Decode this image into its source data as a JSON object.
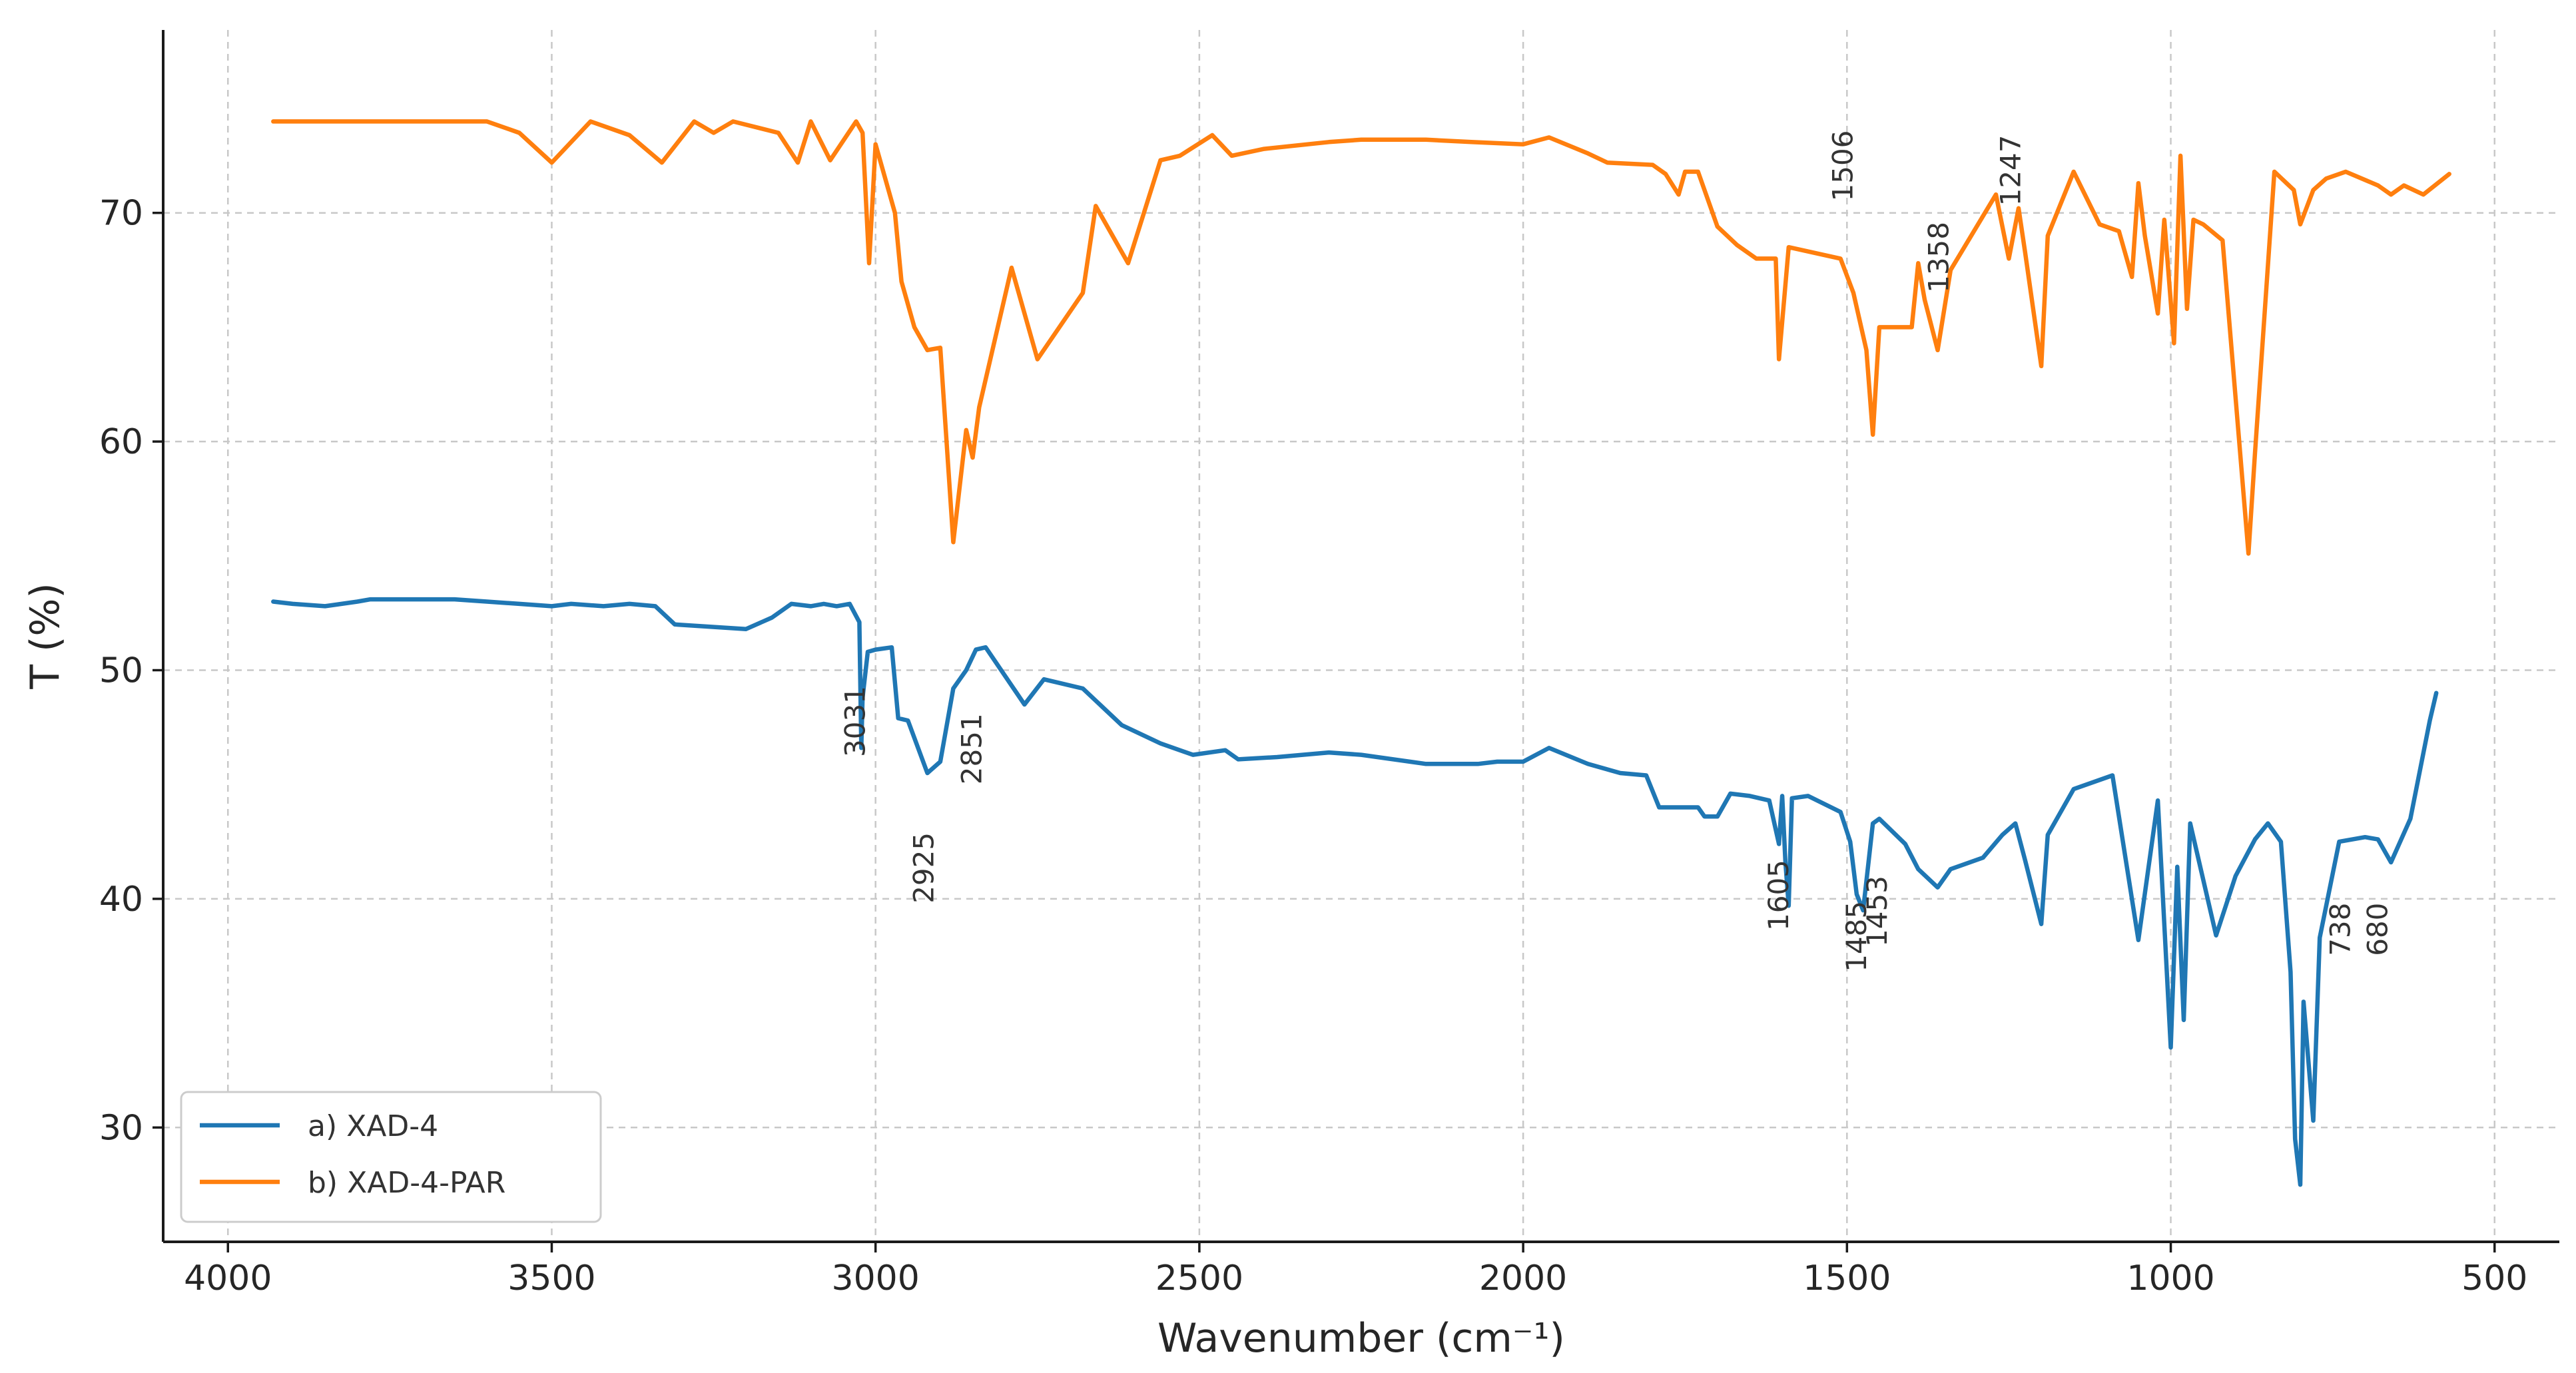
{
  "chart_data": {
    "type": "line",
    "title": "",
    "xlabel": "Wavenumber (cm⁻¹)",
    "ylabel": "T (%)",
    "xlim": [
      4100,
      400
    ],
    "ylim": [
      25,
      78
    ],
    "x_reversed": true,
    "grid": true,
    "legend_position": "bottom-left",
    "xticks": [
      4000,
      3500,
      3000,
      2500,
      2000,
      1500,
      1000,
      500
    ],
    "yticks": [
      30,
      40,
      50,
      60,
      70
    ],
    "series": [
      {
        "name": "a) XAD-4",
        "color": "#1f77b4",
        "points": [
          [
            3930,
            53.0
          ],
          [
            3900,
            52.9
          ],
          [
            3850,
            52.8
          ],
          [
            3800,
            53.0
          ],
          [
            3780,
            53.1
          ],
          [
            3700,
            53.1
          ],
          [
            3650,
            53.1
          ],
          [
            3600,
            53.0
          ],
          [
            3550,
            52.9
          ],
          [
            3500,
            52.8
          ],
          [
            3470,
            52.9
          ],
          [
            3420,
            52.8
          ],
          [
            3380,
            52.9
          ],
          [
            3340,
            52.8
          ],
          [
            3310,
            52.0
          ],
          [
            3200,
            51.8
          ],
          [
            3160,
            52.3
          ],
          [
            3130,
            52.9
          ],
          [
            3100,
            52.8
          ],
          [
            3080,
            52.9
          ],
          [
            3060,
            52.8
          ],
          [
            3040,
            52.9
          ],
          [
            3025,
            52.1
          ],
          [
            3022,
            46.6
          ],
          [
            3020,
            48.8
          ],
          [
            3012,
            50.8
          ],
          [
            3000,
            50.9
          ],
          [
            2975,
            51.0
          ],
          [
            2965,
            47.9
          ],
          [
            2950,
            47.8
          ],
          [
            2920,
            45.5
          ],
          [
            2900,
            46.0
          ],
          [
            2880,
            49.2
          ],
          [
            2860,
            50.0
          ],
          [
            2845,
            50.9
          ],
          [
            2830,
            51.0
          ],
          [
            2770,
            48.5
          ],
          [
            2740,
            49.6
          ],
          [
            2680,
            49.2
          ],
          [
            2620,
            47.6
          ],
          [
            2560,
            46.8
          ],
          [
            2510,
            46.3
          ],
          [
            2460,
            46.5
          ],
          [
            2440,
            46.1
          ],
          [
            2380,
            46.2
          ],
          [
            2300,
            46.4
          ],
          [
            2250,
            46.3
          ],
          [
            2150,
            45.9
          ],
          [
            2070,
            45.9
          ],
          [
            2040,
            46.0
          ],
          [
            2000,
            46.0
          ],
          [
            1960,
            46.6
          ],
          [
            1900,
            45.9
          ],
          [
            1850,
            45.5
          ],
          [
            1810,
            45.4
          ],
          [
            1790,
            44.0
          ],
          [
            1730,
            44.0
          ],
          [
            1720,
            43.6
          ],
          [
            1700,
            43.6
          ],
          [
            1680,
            44.6
          ],
          [
            1650,
            44.5
          ],
          [
            1620,
            44.3
          ],
          [
            1605,
            42.4
          ],
          [
            1600,
            44.5
          ],
          [
            1595,
            41.6
          ],
          [
            1590,
            39.7
          ],
          [
            1585,
            44.4
          ],
          [
            1560,
            44.5
          ],
          [
            1510,
            43.8
          ],
          [
            1495,
            42.5
          ],
          [
            1485,
            40.2
          ],
          [
            1475,
            39.5
          ],
          [
            1460,
            43.3
          ],
          [
            1450,
            43.5
          ],
          [
            1410,
            42.4
          ],
          [
            1390,
            41.3
          ],
          [
            1360,
            40.5
          ],
          [
            1340,
            41.3
          ],
          [
            1290,
            41.8
          ],
          [
            1260,
            42.8
          ],
          [
            1240,
            43.3
          ],
          [
            1225,
            41.7
          ],
          [
            1200,
            38.9
          ],
          [
            1190,
            42.8
          ],
          [
            1150,
            44.8
          ],
          [
            1090,
            45.4
          ],
          [
            1050,
            38.2
          ],
          [
            1020,
            44.3
          ],
          [
            1000,
            33.5
          ],
          [
            990,
            41.4
          ],
          [
            980,
            34.7
          ],
          [
            970,
            43.3
          ],
          [
            930,
            38.4
          ],
          [
            900,
            41.0
          ],
          [
            870,
            42.6
          ],
          [
            850,
            43.3
          ],
          [
            830,
            42.5
          ],
          [
            815,
            36.8
          ],
          [
            808,
            29.5
          ],
          [
            800,
            27.5
          ],
          [
            795,
            35.5
          ],
          [
            780,
            30.3
          ],
          [
            770,
            38.3
          ],
          [
            740,
            42.5
          ],
          [
            700,
            42.7
          ],
          [
            680,
            42.6
          ],
          [
            660,
            41.6
          ],
          [
            630,
            43.5
          ],
          [
            600,
            47.8
          ],
          [
            590,
            49.0
          ]
        ]
      },
      {
        "name": "b) XAD-4-PAR",
        "color": "#ff7f0e",
        "points": [
          [
            3930,
            74.0
          ],
          [
            3900,
            74.0
          ],
          [
            3700,
            74.0
          ],
          [
            3600,
            74.0
          ],
          [
            3550,
            73.5
          ],
          [
            3500,
            72.2
          ],
          [
            3440,
            74.0
          ],
          [
            3380,
            73.4
          ],
          [
            3330,
            72.2
          ],
          [
            3280,
            74.0
          ],
          [
            3250,
            73.5
          ],
          [
            3220,
            74.0
          ],
          [
            3150,
            73.5
          ],
          [
            3120,
            72.2
          ],
          [
            3100,
            74.0
          ],
          [
            3070,
            72.3
          ],
          [
            3030,
            74.0
          ],
          [
            3020,
            73.5
          ],
          [
            3010,
            67.8
          ],
          [
            3000,
            73.0
          ],
          [
            2980,
            71.0
          ],
          [
            2970,
            70.0
          ],
          [
            2960,
            67.0
          ],
          [
            2940,
            65.0
          ],
          [
            2920,
            64.0
          ],
          [
            2900,
            64.1
          ],
          [
            2880,
            55.6
          ],
          [
            2860,
            60.5
          ],
          [
            2850,
            59.3
          ],
          [
            2840,
            61.5
          ],
          [
            2790,
            67.6
          ],
          [
            2750,
            63.6
          ],
          [
            2680,
            66.5
          ],
          [
            2660,
            70.3
          ],
          [
            2610,
            67.8
          ],
          [
            2560,
            72.3
          ],
          [
            2530,
            72.5
          ],
          [
            2480,
            73.4
          ],
          [
            2450,
            72.5
          ],
          [
            2400,
            72.8
          ],
          [
            2300,
            73.1
          ],
          [
            2250,
            73.2
          ],
          [
            2150,
            73.2
          ],
          [
            2080,
            73.1
          ],
          [
            2000,
            73.0
          ],
          [
            1960,
            73.3
          ],
          [
            1900,
            72.6
          ],
          [
            1870,
            72.2
          ],
          [
            1800,
            72.1
          ],
          [
            1780,
            71.7
          ],
          [
            1760,
            70.8
          ],
          [
            1750,
            71.8
          ],
          [
            1730,
            71.8
          ],
          [
            1700,
            69.4
          ],
          [
            1670,
            68.6
          ],
          [
            1640,
            68.0
          ],
          [
            1610,
            68.0
          ],
          [
            1605,
            63.6
          ],
          [
            1590,
            68.5
          ],
          [
            1510,
            68.0
          ],
          [
            1490,
            66.5
          ],
          [
            1470,
            64.0
          ],
          [
            1460,
            60.3
          ],
          [
            1450,
            65.0
          ],
          [
            1400,
            65.0
          ],
          [
            1390,
            67.8
          ],
          [
            1380,
            66.2
          ],
          [
            1360,
            64.0
          ],
          [
            1340,
            67.5
          ],
          [
            1270,
            70.8
          ],
          [
            1250,
            68.0
          ],
          [
            1235,
            70.2
          ],
          [
            1225,
            68.3
          ],
          [
            1200,
            63.3
          ],
          [
            1190,
            69.0
          ],
          [
            1150,
            71.8
          ],
          [
            1110,
            69.5
          ],
          [
            1080,
            69.2
          ],
          [
            1060,
            67.2
          ],
          [
            1050,
            71.3
          ],
          [
            1040,
            69.0
          ],
          [
            1020,
            65.6
          ],
          [
            1010,
            69.7
          ],
          [
            995,
            64.3
          ],
          [
            985,
            72.5
          ],
          [
            975,
            65.8
          ],
          [
            965,
            69.7
          ],
          [
            950,
            69.5
          ],
          [
            920,
            68.8
          ],
          [
            880,
            55.1
          ],
          [
            870,
            59.5
          ],
          [
            840,
            71.8
          ],
          [
            810,
            71.0
          ],
          [
            800,
            69.5
          ],
          [
            780,
            71.0
          ],
          [
            760,
            71.5
          ],
          [
            730,
            71.8
          ],
          [
            680,
            71.2
          ],
          [
            660,
            70.8
          ],
          [
            640,
            71.2
          ],
          [
            610,
            70.8
          ],
          [
            570,
            71.7
          ]
        ]
      }
    ],
    "annotations": [
      {
        "text": "3031",
        "x": 3031,
        "y": 46.2
      },
      {
        "text": "2925",
        "x": 2925,
        "y": 39.8
      },
      {
        "text": "2851",
        "x": 2851,
        "y": 45.0
      },
      {
        "text": "1605",
        "x": 1605,
        "y": 38.6
      },
      {
        "text": "1485",
        "x": 1485,
        "y": 36.8
      },
      {
        "text": "1453",
        "x": 1453,
        "y": 37.9
      },
      {
        "text": "738",
        "x": 738,
        "y": 37.5
      },
      {
        "text": "680",
        "x": 680,
        "y": 37.5
      },
      {
        "text": "1506",
        "x": 1506,
        "y": 70.5
      },
      {
        "text": "1358",
        "x": 1358,
        "y": 66.5
      },
      {
        "text": "1247",
        "x": 1247,
        "y": 70.3
      }
    ]
  }
}
